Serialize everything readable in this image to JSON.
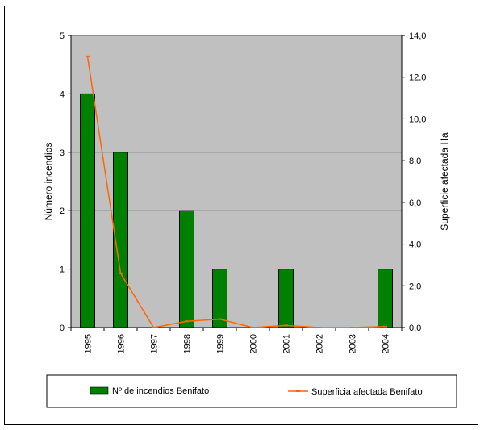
{
  "chart_data": {
    "type": "bar+line",
    "categories": [
      "1995",
      "1996",
      "1997",
      "1998",
      "1999",
      "2000",
      "2001",
      "2002",
      "2003",
      "2004"
    ],
    "series": [
      {
        "name": "Nº de incendios Benifato",
        "type": "bar",
        "axis": "left",
        "color": "#008000",
        "values": [
          4,
          3,
          0,
          2,
          1,
          0,
          1,
          0,
          0,
          1
        ]
      },
      {
        "name": "Superficia afectada Benifato",
        "type": "line",
        "axis": "right",
        "color": "#ff6600",
        "values": [
          13.0,
          2.6,
          0.0,
          0.3,
          0.4,
          0.0,
          0.1,
          0.0,
          0.0,
          0.05
        ]
      }
    ],
    "ylabel_left": "Número incendios",
    "ylabel_right": "Superficie afectada Ha",
    "ylim_left": [
      0,
      5
    ],
    "ylim_right": [
      0,
      14
    ],
    "yticks_left": [
      "0",
      "1",
      "2",
      "3",
      "4",
      "5"
    ],
    "yticks_right": [
      "0,0",
      "2,0",
      "4,0",
      "6,0",
      "8,0",
      "10,0",
      "12,0",
      "14,0"
    ],
    "plot_background": "#c0c0c0",
    "grid": true,
    "legend_position": "bottom"
  }
}
